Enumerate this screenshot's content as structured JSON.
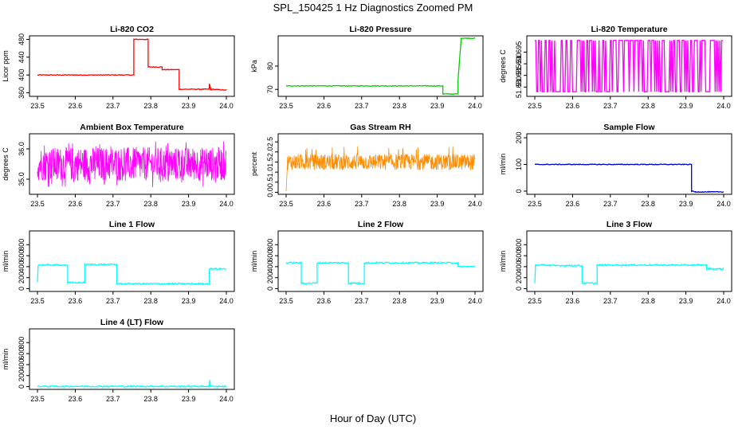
{
  "figure": {
    "title": "SPL_150425  1 Hz Diagnostics Zoomed PM",
    "xlabel": "Hour of Day (UTC)"
  },
  "chart_data": [
    {
      "type": "line",
      "title": "Li-820 CO2",
      "ylabel": "Licor ppm",
      "color": "#ff0000",
      "xlim": [
        23.5,
        24.0
      ],
      "xticks": [
        "23.5",
        "23.6",
        "23.7",
        "23.8",
        "23.9",
        "24.0"
      ],
      "ylim": [
        352,
        488
      ],
      "yticks": [
        360,
        400,
        440,
        480
      ],
      "x": [
        23.5,
        23.755,
        23.755,
        23.793,
        23.793,
        23.83,
        23.83,
        23.875,
        23.875,
        23.955,
        23.955,
        23.96,
        23.96,
        24.0
      ],
      "y": [
        400,
        400,
        480,
        480,
        418,
        418,
        412,
        412,
        368,
        368,
        380,
        365,
        368,
        366
      ]
    },
    {
      "type": "line",
      "title": "Li-820 Pressure",
      "ylabel": "kPa",
      "color": "#00cc00",
      "xlim": [
        23.5,
        24.0
      ],
      "xticks": [
        "23.5",
        "23.6",
        "23.7",
        "23.8",
        "23.9",
        "24.0"
      ],
      "ylim": [
        67,
        93
      ],
      "yticks": [
        70,
        80
      ],
      "x": [
        23.5,
        23.915,
        23.915,
        23.955,
        23.955,
        23.963,
        23.963,
        24.0
      ],
      "y": [
        71.5,
        71.5,
        68,
        68,
        74,
        91,
        92,
        92
      ]
    },
    {
      "type": "line",
      "title": "Li-820 Temperature",
      "ylabel": "degrees C",
      "color": "#ff00ff",
      "xlim": [
        23.5,
        24.0
      ],
      "xticks": [
        "23.5",
        "23.6",
        "23.7",
        "23.8",
        "23.9",
        "24.0"
      ],
      "ylim": [
        51.676,
        51.702
      ],
      "yticks": [
        51.68,
        51.685,
        51.69,
        51.695
      ],
      "ytick_labels": [
        "51.680",
        "51.685",
        "51.690",
        "51.695"
      ],
      "x": [
        23.5,
        24.0
      ],
      "y": [
        51.678,
        51.7
      ]
    },
    {
      "type": "line",
      "title": "Ambient Box Temperature",
      "ylabel": "degrees C",
      "color": "#ff00ff",
      "xlim": [
        23.5,
        24.0
      ],
      "xticks": [
        "23.5",
        "23.6",
        "23.7",
        "23.8",
        "23.9",
        "24.0"
      ],
      "ylim": [
        34.5,
        36.5
      ],
      "yticks": [
        35.0,
        36.0
      ],
      "ytick_labels": [
        "35.0",
        "36.0"
      ],
      "x": [
        23.5,
        24.0
      ],
      "y": [
        34.8,
        36.2
      ]
    },
    {
      "type": "line",
      "title": "Gas Stream RH",
      "ylabel": "percent",
      "color": "#ff8c00",
      "xlim": [
        23.5,
        24.0
      ],
      "xticks": [
        "23.5",
        "23.6",
        "23.7",
        "23.8",
        "23.9",
        "24.0"
      ],
      "ylim": [
        -0.1,
        2.9
      ],
      "yticks": [
        0.0,
        0.5,
        1.0,
        1.5,
        2.0,
        2.5
      ],
      "ytick_labels": [
        "0.0",
        "0.5",
        "1.0",
        "1.5",
        "2.0",
        "2.5"
      ],
      "x": [
        23.5,
        24.0
      ],
      "y": [
        1.1,
        1.9
      ]
    },
    {
      "type": "line",
      "title": "Sample Flow",
      "ylabel": "ml/min",
      "color": "#0000cc",
      "xlim": [
        23.5,
        24.0
      ],
      "xticks": [
        "23.5",
        "23.6",
        "23.7",
        "23.8",
        "23.9",
        "24.0"
      ],
      "ylim": [
        -12,
        215
      ],
      "yticks": [
        0,
        100,
        200
      ],
      "x": [
        23.5,
        23.915,
        23.915,
        23.925,
        24.0
      ],
      "y": [
        100,
        100,
        0,
        -3,
        -3
      ]
    },
    {
      "type": "line",
      "title": "Line 1 Flow",
      "ylabel": "ml/min",
      "color": "#00ffff",
      "xlim": [
        23.5,
        24.0
      ],
      "xticks": [
        "23.5",
        "23.6",
        "23.7",
        "23.8",
        "23.9",
        "24.0"
      ],
      "ylim": [
        -50,
        1050
      ],
      "yticks": [
        0,
        200,
        400,
        600,
        800
      ],
      "x": [
        23.5,
        23.502,
        23.58,
        23.58,
        23.625,
        23.625,
        23.71,
        23.71,
        23.955,
        23.955,
        24.0
      ],
      "y": [
        120,
        430,
        430,
        110,
        110,
        440,
        440,
        90,
        90,
        360,
        360
      ]
    },
    {
      "type": "line",
      "title": "Line 2 Flow",
      "ylabel": "ml/min",
      "color": "#00ffff",
      "xlim": [
        23.5,
        24.0
      ],
      "xticks": [
        "23.5",
        "23.6",
        "23.7",
        "23.8",
        "23.9",
        "24.0"
      ],
      "ylim": [
        -50,
        1050
      ],
      "yticks": [
        0,
        200,
        400,
        600,
        800
      ],
      "x": [
        23.5,
        23.54,
        23.54,
        23.582,
        23.582,
        23.665,
        23.665,
        23.707,
        23.707,
        23.955,
        23.955,
        24.0
      ],
      "y": [
        470,
        470,
        100,
        100,
        470,
        470,
        100,
        100,
        470,
        470,
        400,
        400
      ]
    },
    {
      "type": "line",
      "title": "Line 3 Flow",
      "ylabel": "ml/min",
      "color": "#00ffff",
      "xlim": [
        23.5,
        24.0
      ],
      "xticks": [
        "23.5",
        "23.6",
        "23.7",
        "23.8",
        "23.9",
        "24.0"
      ],
      "ylim": [
        -50,
        1050
      ],
      "yticks": [
        0,
        200,
        400,
        600,
        800
      ],
      "x": [
        23.5,
        23.502,
        23.54,
        23.54,
        23.625,
        23.625,
        23.665,
        23.665,
        23.955,
        23.955,
        24.0
      ],
      "y": [
        100,
        430,
        430,
        420,
        420,
        100,
        100,
        430,
        430,
        360,
        360
      ]
    },
    {
      "type": "line",
      "title": "Line 4 (LT) Flow",
      "ylabel": "ml/min",
      "color": "#00ffff",
      "xlim": [
        23.5,
        24.0
      ],
      "xticks": [
        "23.5",
        "23.6",
        "23.7",
        "23.8",
        "23.9",
        "24.0"
      ],
      "ylim": [
        -50,
        1050
      ],
      "yticks": [
        0,
        200,
        400,
        600,
        800
      ],
      "x": [
        23.5,
        23.955,
        23.956,
        23.958,
        24.0
      ],
      "y": [
        5,
        5,
        120,
        5,
        5
      ]
    }
  ]
}
